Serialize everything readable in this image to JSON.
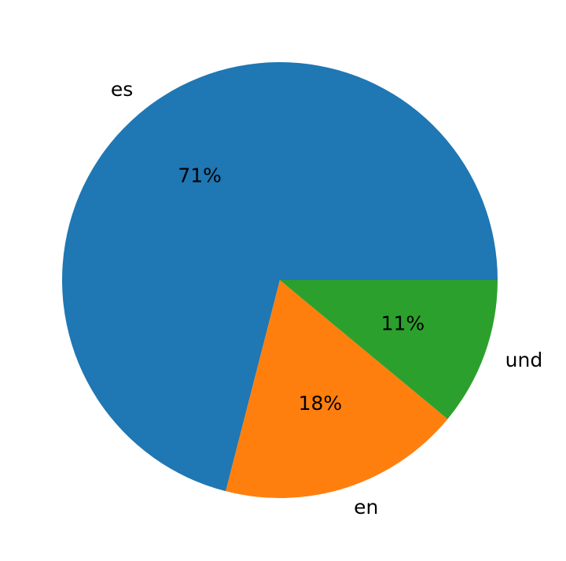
{
  "chart_data": {
    "type": "pie",
    "categories": [
      "es",
      "en",
      "und"
    ],
    "values": [
      71,
      18,
      11
    ],
    "value_labels": [
      "71%",
      "18%",
      "11%"
    ],
    "colors": [
      "#1f77b4",
      "#ff7f0e",
      "#2ca02c"
    ],
    "start_angle": 0,
    "direction": "counterclockwise"
  }
}
